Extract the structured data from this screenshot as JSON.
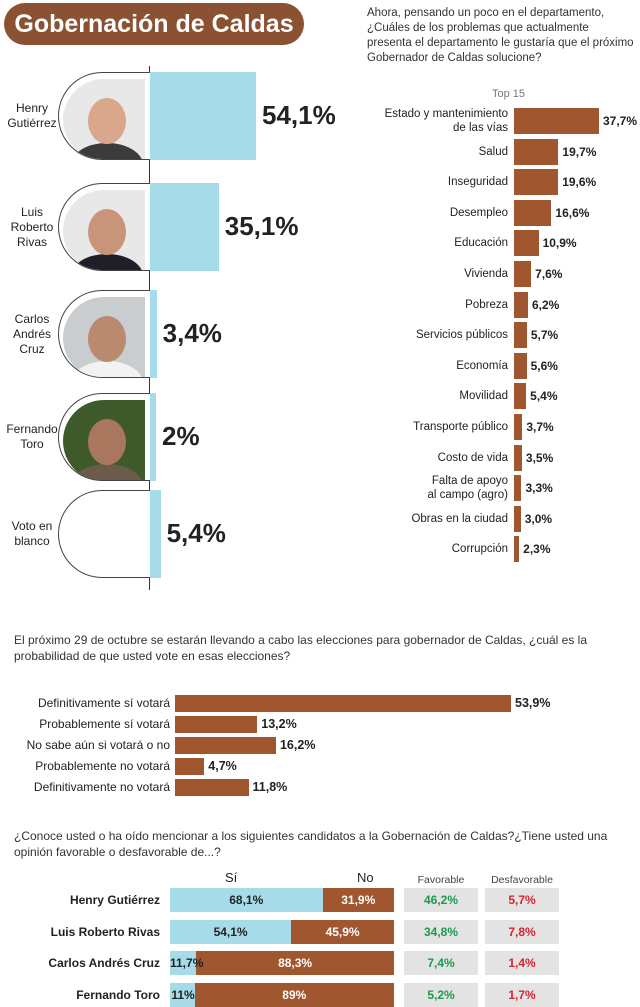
{
  "header": {
    "title": "Gobernación de Caldas",
    "question1": "Ahora, pensando un poco en el departamento, ¿Cuáles de los problemas que actualmente presenta el departamento le gustaría que el próximo Gobernador de Caldas solucione?",
    "top_label": "Top 15"
  },
  "colors": {
    "brand_brown": "#8a5232",
    "bar_brown": "#a0562f",
    "bar_blue": "#a6dcea",
    "favorable_green": "#1e9a4e",
    "unfavorable_red": "#d22630"
  },
  "chart_data": [
    {
      "type": "bar",
      "orientation": "horizontal",
      "categories": [
        "Henry Gutiérrez",
        "Luis Roberto Rivas",
        "Carlos Andrés Cruz",
        "Fernando Toro",
        "Voto en blanco"
      ],
      "category_lines": [
        [
          "Henry",
          "Gutiérrez"
        ],
        [
          "Luis",
          "Roberto",
          "Rivas"
        ],
        [
          "Carlos",
          "Andrés",
          "Cruz"
        ],
        [
          "Fernando",
          "Toro"
        ],
        [
          "Voto en",
          "blanco"
        ]
      ],
      "values": [
        54.1,
        35.1,
        3.4,
        2,
        5.4
      ],
      "value_labels": [
        "54,1%",
        "35,1%",
        "3,4%",
        "2%",
        "5,4%"
      ],
      "color": "#a6dcea"
    },
    {
      "type": "bar",
      "orientation": "horizontal",
      "title": "Top 15",
      "categories": [
        "Estado y mantenimiento de las vías",
        "Salud",
        "Inseguridad",
        "Desempleo",
        "Educación",
        "Vivienda",
        "Pobreza",
        "Servicios públicos",
        "Economía",
        "Movilidad",
        "Transporte público",
        "Costo de vida",
        "Falta de apoyo al campo (agro)",
        "Obras en la ciudad",
        "Corrupción"
      ],
      "category_lines": [
        [
          "Estado y mantenimiento",
          "de las vías"
        ],
        [
          "Salud"
        ],
        [
          "Inseguridad"
        ],
        [
          "Desempleo"
        ],
        [
          "Educación"
        ],
        [
          "Vivienda"
        ],
        [
          "Pobreza"
        ],
        [
          "Servicios públicos"
        ],
        [
          "Economía"
        ],
        [
          "Movilidad"
        ],
        [
          "Transporte público"
        ],
        [
          "Costo de vida"
        ],
        [
          "Falta de apoyo",
          "al campo (agro)"
        ],
        [
          "Obras en la ciudad"
        ],
        [
          "Corrupción"
        ]
      ],
      "values": [
        37.7,
        19.7,
        19.6,
        16.6,
        10.9,
        7.6,
        6.2,
        5.7,
        5.6,
        5.4,
        3.7,
        3.5,
        3.3,
        3.0,
        2.3
      ],
      "value_labels": [
        "37,7%",
        "19,7%",
        "19,6%",
        "16,6%",
        "10,9%",
        "7,6%",
        "6,2%",
        "5,7%",
        "5,6%",
        "5,4%",
        "3,7%",
        "3,5%",
        "3,3%",
        "3,0%",
        "2,3%"
      ],
      "color": "#a0562f"
    },
    {
      "type": "bar",
      "orientation": "horizontal",
      "title": "El próximo 29 de octubre se estarán llevando a cabo las elecciones para gobernador de Caldas, ¿cuál es la probabilidad de que usted vote en esas elecciones?",
      "categories": [
        "Definitivamente sí votará",
        "Probablemente sí votará",
        "No sabe aún si votará o no",
        "Probablemente no votará",
        "Definitivamente no votará"
      ],
      "values": [
        53.9,
        13.2,
        16.2,
        4.7,
        11.8
      ],
      "value_labels": [
        "53,9%",
        "13,2%",
        "16,2%",
        "4,7%",
        "11,8%"
      ],
      "color": "#a0562f"
    },
    {
      "type": "bar",
      "orientation": "horizontal",
      "stacked": true,
      "title": "¿Conoce usted o ha oído mencionar a los siguientes candidatos a la Gobernación de Caldas?¿Tiene usted una opinión favorable o desfavorable de...?",
      "categories": [
        "Henry Gutiérrez",
        "Luis Roberto Rivas",
        "Carlos Andrés Cruz",
        "Fernando Toro"
      ],
      "series": [
        {
          "name": "Sí",
          "values": [
            68.1,
            54.1,
            11.7,
            11
          ],
          "labels": [
            "68,1%",
            "54,1%",
            "11,7%",
            "11%"
          ],
          "color": "#a6dcea"
        },
        {
          "name": "No",
          "values": [
            31.9,
            45.9,
            88.3,
            89
          ],
          "labels": [
            "31,9%",
            "45,9%",
            "88,3%",
            "89%"
          ],
          "color": "#a0562f"
        }
      ],
      "opinion": {
        "favorable_header": "Favorable",
        "unfavorable_header": "Desfavorable",
        "favorable": [
          "46,2%",
          "34,8%",
          "7,4%",
          "5,2%"
        ],
        "unfavorable": [
          "5,7%",
          "7,8%",
          "1,4%",
          "1,7%"
        ]
      }
    }
  ]
}
